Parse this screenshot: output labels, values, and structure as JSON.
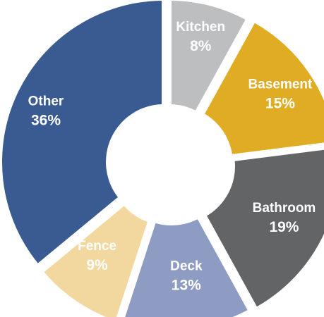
{
  "chart_data": {
    "type": "pie",
    "variant": "donut",
    "title": "",
    "legend": "none",
    "slices": [
      {
        "label": "Kitchen",
        "value": 8,
        "value_label": "8%",
        "color": "#bcbec0"
      },
      {
        "label": "Basement",
        "value": 15,
        "value_label": "15%",
        "color": "#e0ac24"
      },
      {
        "label": "Bathroom",
        "value": 19,
        "value_label": "19%",
        "color": "#636466"
      },
      {
        "label": "Deck",
        "value": 13,
        "value_label": "13%",
        "color": "#8e9bc2"
      },
      {
        "label": "Fence",
        "value": 9,
        "value_label": "9%",
        "color": "#f2d89f"
      },
      {
        "label": "Other",
        "value": 36,
        "value_label": "36%",
        "color": "#3a5b91"
      }
    ]
  }
}
